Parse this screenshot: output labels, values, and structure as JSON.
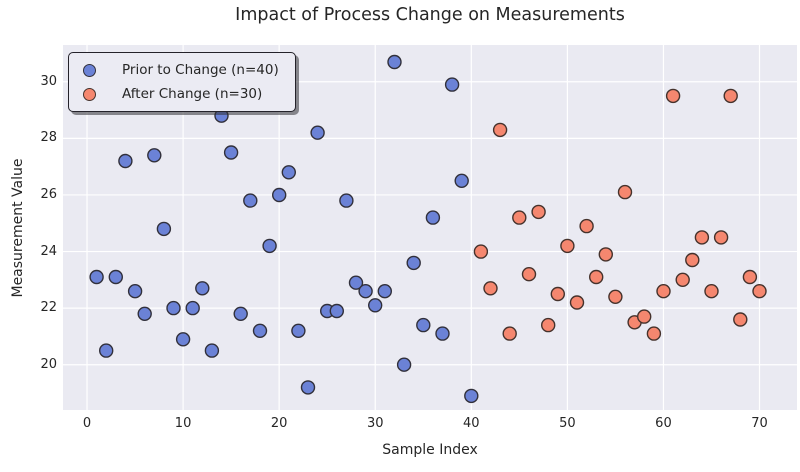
{
  "title": "Impact of Process Change on Measurements",
  "style": {
    "figure_bg": "#ffffff",
    "axes_bg": "#eaeaf2",
    "grid_color": "#ffffff",
    "text_color": "#262626",
    "prior_fill": "#6b82d6",
    "prior_edge": "#31303b",
    "after_fill": "#f5876f",
    "after_edge": "#45322c"
  },
  "chart_data": {
    "type": "scatter",
    "title": "Impact of Process Change on Measurements",
    "xlabel": "Sample Index",
    "ylabel": "Measurement Value",
    "xlim": [
      -2.5,
      73.9
    ],
    "ylim": [
      18.4,
      31.3
    ],
    "x_ticks": [
      0,
      10,
      20,
      30,
      40,
      50,
      60,
      70
    ],
    "y_ticks": [
      20,
      22,
      24,
      26,
      28,
      30
    ],
    "grid": true,
    "legend_position": "upper left",
    "series": [
      {
        "name": "Prior to Change (n=40)",
        "marker_fill": "#6b82d6",
        "marker_edge": "#31303b",
        "points": [
          [
            1,
            23.1
          ],
          [
            2,
            20.5
          ],
          [
            3,
            23.1
          ],
          [
            4,
            27.2
          ],
          [
            5,
            22.6
          ],
          [
            6,
            21.8
          ],
          [
            7,
            27.4
          ],
          [
            8,
            24.8
          ],
          [
            9,
            22.0
          ],
          [
            10,
            20.9
          ],
          [
            11,
            22.0
          ],
          [
            12,
            22.7
          ],
          [
            13,
            20.5
          ],
          [
            14,
            28.8
          ],
          [
            15,
            27.5
          ],
          [
            16,
            21.8
          ],
          [
            17,
            25.8
          ],
          [
            18,
            21.2
          ],
          [
            19,
            24.2
          ],
          [
            20,
            26.0
          ],
          [
            21,
            26.8
          ],
          [
            22,
            21.2
          ],
          [
            23,
            19.2
          ],
          [
            24,
            28.2
          ],
          [
            25,
            21.9
          ],
          [
            26,
            21.9
          ],
          [
            27,
            25.8
          ],
          [
            28,
            22.9
          ],
          [
            29,
            22.6
          ],
          [
            30,
            22.1
          ],
          [
            31,
            22.6
          ],
          [
            32,
            30.7
          ],
          [
            33,
            20.0
          ],
          [
            34,
            23.6
          ],
          [
            35,
            21.4
          ],
          [
            36,
            25.2
          ],
          [
            37,
            21.1
          ],
          [
            38,
            29.9
          ],
          [
            39,
            26.5
          ],
          [
            40,
            18.9
          ]
        ]
      },
      {
        "name": "After Change (n=30)",
        "marker_fill": "#f5876f",
        "marker_edge": "#45322c",
        "points": [
          [
            41,
            24.0
          ],
          [
            42,
            22.7
          ],
          [
            43,
            28.3
          ],
          [
            44,
            21.1
          ],
          [
            45,
            25.2
          ],
          [
            46,
            23.2
          ],
          [
            47,
            25.4
          ],
          [
            48,
            21.4
          ],
          [
            49,
            22.5
          ],
          [
            50,
            24.2
          ],
          [
            51,
            22.2
          ],
          [
            52,
            24.9
          ],
          [
            53,
            23.1
          ],
          [
            54,
            23.9
          ],
          [
            55,
            22.4
          ],
          [
            56,
            26.1
          ],
          [
            57,
            21.5
          ],
          [
            58,
            21.7
          ],
          [
            59,
            21.1
          ],
          [
            60,
            22.6
          ],
          [
            61,
            29.5
          ],
          [
            62,
            23.0
          ],
          [
            63,
            23.7
          ],
          [
            64,
            24.5
          ],
          [
            65,
            22.6
          ],
          [
            66,
            24.5
          ],
          [
            67,
            29.5
          ],
          [
            68,
            21.6
          ],
          [
            69,
            23.1
          ],
          [
            70,
            22.6
          ]
        ]
      }
    ]
  }
}
